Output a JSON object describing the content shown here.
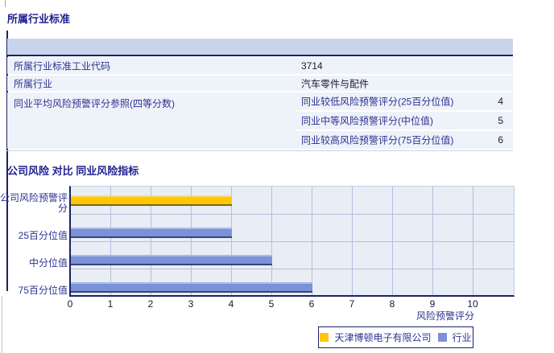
{
  "section_industry": {
    "title": "所属行业标准",
    "rows": [
      {
        "label": "所属行业标准工业代码",
        "value": "3714"
      },
      {
        "label": "所属行业",
        "value": "汽车零件与配件"
      },
      {
        "label": "同业平均风险预警评分参照(四等分数)",
        "subrows": [
          {
            "label": "同业较低风险预警评分(25百分位值)",
            "value": "4"
          },
          {
            "label": "同业中等风险预警评分(中位值)",
            "value": "5"
          },
          {
            "label": "同业较高风险预警评分(75百分位值)",
            "value": "6"
          }
        ]
      }
    ]
  },
  "section_compare": {
    "title": "公司风险 对比 同业风险指标"
  },
  "chart_data": {
    "type": "bar",
    "orientation": "horizontal",
    "title": "",
    "categories": [
      "公司风险预警评分",
      "25百分位值",
      "中分位值",
      "75百分位值"
    ],
    "series": [
      {
        "name": "天津博顿电子有限公司",
        "color": "#FFC60A",
        "values": [
          4,
          null,
          null,
          null
        ]
      },
      {
        "name": "行业",
        "color": "#7A92D8",
        "values": [
          null,
          4,
          5,
          6
        ]
      }
    ],
    "xlabel": "风险预警评分",
    "ylabel": "",
    "xlim": [
      0,
      11
    ],
    "xticks": [
      0,
      1,
      2,
      3,
      4,
      5,
      6,
      7,
      8,
      9,
      10
    ],
    "grid": true,
    "legend_position": "bottom",
    "plot_background": "#E9EDF5",
    "gridline_color": "#B3C0DC",
    "axis_color": "#1B2364"
  }
}
